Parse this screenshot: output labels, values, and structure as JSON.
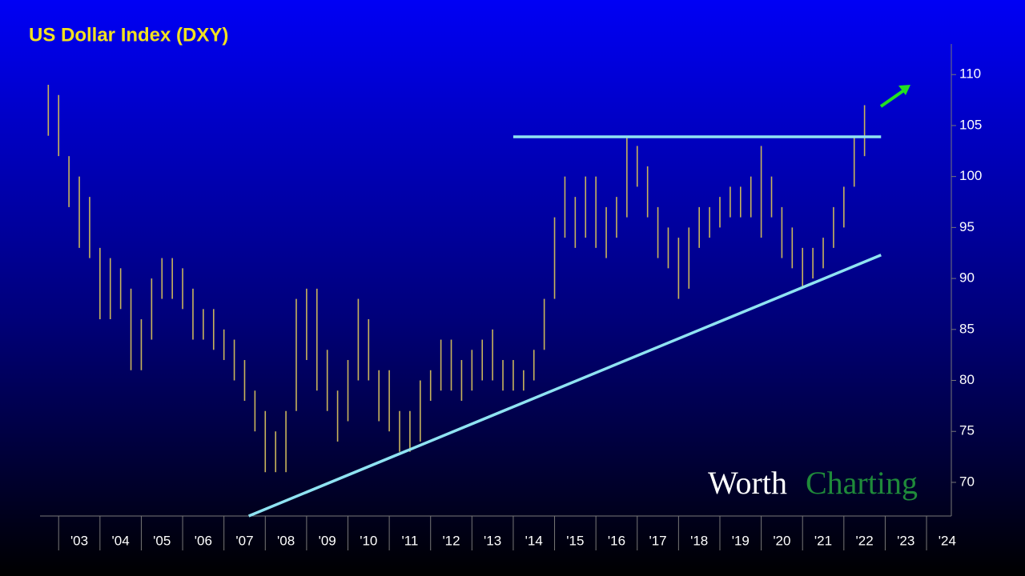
{
  "chart_data": {
    "type": "range-bar",
    "title": "US Dollar Index (DXY)",
    "watermark": [
      "Worth",
      "Charting"
    ],
    "color": "#c9b45c",
    "x": [
      2002.75,
      2003,
      2003.25,
      2003.5,
      2003.75,
      2004,
      2004.25,
      2004.5,
      2004.75,
      2005,
      2005.25,
      2005.5,
      2005.75,
      2006,
      2006.25,
      2006.5,
      2006.75,
      2007,
      2007.25,
      2007.5,
      2007.75,
      2008,
      2008.25,
      2008.5,
      2008.75,
      2009,
      2009.25,
      2009.5,
      2009.75,
      2010,
      2010.25,
      2010.5,
      2010.75,
      2011,
      2011.25,
      2011.5,
      2011.75,
      2012,
      2012.25,
      2012.5,
      2012.75,
      2013,
      2013.25,
      2013.5,
      2013.75,
      2014,
      2014.25,
      2014.5,
      2014.75,
      2015,
      2015.25,
      2015.5,
      2015.75,
      2016,
      2016.25,
      2016.5,
      2016.75,
      2017,
      2017.25,
      2017.5,
      2017.75,
      2018,
      2018.25,
      2018.5,
      2018.75,
      2019,
      2019.25,
      2019.5,
      2019.75,
      2020,
      2020.25,
      2020.5,
      2020.75,
      2021,
      2021.25,
      2021.5,
      2021.75,
      2022,
      2022.25,
      2022.5
    ],
    "high": [
      109,
      108,
      102,
      100,
      98,
      93,
      92,
      91,
      89,
      86,
      90,
      92,
      92,
      91,
      89,
      87,
      87,
      85,
      84,
      82,
      79,
      77,
      75,
      77,
      88,
      89,
      89,
      83,
      79,
      82,
      88,
      86,
      81,
      81,
      77,
      77,
      80,
      81,
      84,
      84,
      82,
      83,
      84,
      85,
      82,
      82,
      81,
      83,
      88,
      96,
      100,
      98,
      100,
      100,
      97,
      98,
      104,
      103,
      101,
      97,
      95,
      94,
      95,
      97,
      97,
      98,
      99,
      99,
      100,
      103,
      100,
      97,
      95,
      93,
      93,
      94,
      97,
      99,
      104,
      107
    ],
    "low": [
      104,
      102,
      97,
      93,
      92,
      86,
      86,
      87,
      81,
      81,
      84,
      88,
      88,
      87,
      84,
      84,
      83,
      82,
      80,
      78,
      75,
      71,
      71,
      71,
      77,
      82,
      79,
      77,
      74,
      76,
      80,
      80,
      76,
      75,
      73,
      73,
      74,
      78,
      79,
      79,
      78,
      79,
      80,
      80,
      79,
      79,
      79,
      80,
      83,
      88,
      94,
      93,
      94,
      93,
      92,
      94,
      96,
      99,
      96,
      92,
      91,
      88,
      89,
      93,
      94,
      95,
      96,
      96,
      96,
      94,
      96,
      92,
      91,
      89,
      90,
      91,
      93,
      95,
      99,
      102
    ],
    "reference_lines": [
      {
        "x": [
          2014,
          2022.9
        ],
        "y": [
          103.9,
          103.9
        ],
        "color": "#8fe3f2"
      },
      {
        "x": [
          2007.6,
          2022.9
        ],
        "y": [
          66.7,
          92.3
        ],
        "color": "#8fe3f2"
      }
    ],
    "xlim": [
      2002.55,
      2024.6
    ],
    "ylim": [
      66.7,
      113
    ],
    "xticks": [
      {
        "value": 2003,
        "label": "'03"
      },
      {
        "value": 2004,
        "label": "'04"
      },
      {
        "value": 2005,
        "label": "'05"
      },
      {
        "value": 2006,
        "label": "'06"
      },
      {
        "value": 2007,
        "label": "'07"
      },
      {
        "value": 2008,
        "label": "'08"
      },
      {
        "value": 2009,
        "label": "'09"
      },
      {
        "value": 2010,
        "label": "'10"
      },
      {
        "value": 2011,
        "label": "'11"
      },
      {
        "value": 2012,
        "label": "'12"
      },
      {
        "value": 2013,
        "label": "'13"
      },
      {
        "value": 2014,
        "label": "'14"
      },
      {
        "value": 2015,
        "label": "'15"
      },
      {
        "value": 2016,
        "label": "'16"
      },
      {
        "value": 2017,
        "label": "'17"
      },
      {
        "value": 2018,
        "label": "'18"
      },
      {
        "value": 2019,
        "label": "'19"
      },
      {
        "value": 2020,
        "label": "'20"
      },
      {
        "value": 2021,
        "label": "'21"
      },
      {
        "value": 2022,
        "label": "'22"
      },
      {
        "value": 2023,
        "label": "'23"
      },
      {
        "value": 2024,
        "label": "'24"
      }
    ],
    "yticks": [
      70,
      75,
      80,
      85,
      90,
      95,
      100,
      105,
      110
    ]
  }
}
